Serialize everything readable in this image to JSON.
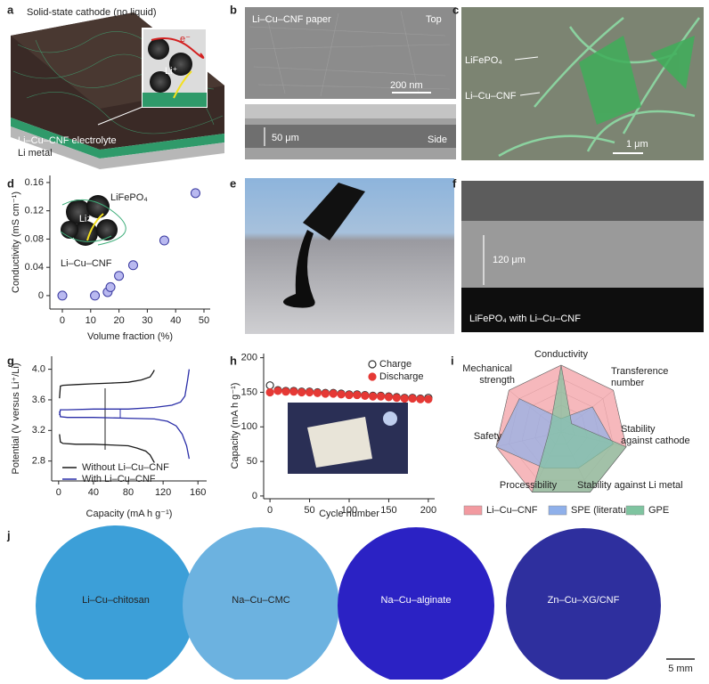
{
  "panels": {
    "a": {
      "label": "a",
      "cathode": "Solid-state cathode (no liquid)",
      "inset_electron": "e⁻",
      "inset_ion": "Li⁺",
      "electrolyte": "Li–Cu–CNF electrolyte",
      "anode": "Li metal"
    },
    "b": {
      "label": "b",
      "sample": "Li–Cu–CNF paper",
      "top": "Top",
      "top_scale": "200 nm",
      "side_scale": "50 μm",
      "side": "Side"
    },
    "c": {
      "label": "c",
      "cathode": "LiFePO₄",
      "binder": "Li–Cu–CNF",
      "scale": "1 μm"
    },
    "e": {
      "label": "e"
    },
    "f": {
      "label": "f",
      "thickness": "120 μm",
      "caption": "LiFePO₄ with Li–Cu–CNF"
    },
    "j": {
      "label": "j",
      "samples": [
        "Li–Cu–chitosan",
        "Na–Cu–CMC",
        "Na–Cu–alginate",
        "Zn–Cu–XG/CNF"
      ],
      "scale": "5 mm"
    }
  },
  "chart_data": [
    {
      "type": "scatter",
      "label": "d",
      "xlabel": "Volume fraction (%)",
      "ylabel": "Conductivity (mS cm⁻¹)",
      "x": [
        0,
        11.5,
        16,
        17,
        20,
        25,
        36,
        47
      ],
      "values": [
        0,
        0,
        0.005,
        0.012,
        0.028,
        0.043,
        0.078,
        0.145
      ],
      "color": "#b9b9f0",
      "edgecolor": "#3a3aa0",
      "xlim": [
        -4.4,
        52.2
      ],
      "ylim": [
        -0.019,
        0.17
      ],
      "xticks": [
        0,
        10,
        20,
        30,
        40,
        50
      ],
      "yticks": [
        0,
        0.04,
        0.08,
        0.12,
        0.16
      ],
      "annotations": [
        "LiFePO₄",
        "Li⁺",
        "Li–Cu–CNF"
      ]
    },
    {
      "type": "line",
      "label": "g",
      "xlabel": "Capacity (mA h g⁻¹)",
      "ylabel": "Potential (V versus Li⁺/Li)",
      "xlim": [
        -8,
        170
      ],
      "ylim": [
        2.54,
        4.17
      ],
      "xticks": [
        0,
        40,
        80,
        120,
        160
      ],
      "yticks": [
        2.8,
        3.2,
        3.6,
        {
          "value": 4,
          "label": "4.0"
        }
      ],
      "legend": "lower left",
      "series": [
        {
          "name": "Without Li–Cu–CNF",
          "color": "#1a1a1a",
          "x": [
            1,
            2,
            5,
            20,
            40,
            60,
            80,
            95,
            105,
            108,
            110,
            null,
            1,
            2,
            5,
            20,
            40,
            60,
            80,
            90,
            100,
            105,
            110
          ],
          "values": [
            3.62,
            3.78,
            3.79,
            3.8,
            3.81,
            3.82,
            3.83,
            3.86,
            3.9,
            3.95,
            3.99,
            null,
            3.15,
            3.05,
            3.03,
            3.02,
            3.02,
            3.01,
            3.0,
            2.97,
            2.93,
            2.88,
            2.78
          ]
        },
        {
          "name": "With Li–Cu–CNF",
          "color": "#2b2fa8",
          "x": [
            1,
            2,
            10,
            40,
            80,
            110,
            130,
            140,
            145,
            148,
            150,
            null,
            1,
            2,
            10,
            40,
            80,
            110,
            125,
            135,
            142,
            147,
            150
          ],
          "values": [
            3.4,
            3.47,
            3.47,
            3.48,
            3.48,
            3.5,
            3.53,
            3.57,
            3.65,
            3.85,
            4.0,
            null,
            3.45,
            3.38,
            3.37,
            3.37,
            3.36,
            3.35,
            3.32,
            3.26,
            3.15,
            3.0,
            2.83
          ]
        }
      ]
    },
    {
      "type": "scatter",
      "label": "h",
      "xlabel": "Cycle number",
      "ylabel": "Capacity (mA h g⁻¹)",
      "xlim": [
        -8,
        208
      ],
      "ylim": [
        -4,
        206
      ],
      "xticks": [
        0,
        50,
        100,
        150,
        200
      ],
      "yticks": [
        0,
        50,
        100,
        150,
        200
      ],
      "legend": "upper right",
      "x": [
        0,
        10,
        20,
        30,
        40,
        50,
        60,
        70,
        80,
        90,
        100,
        110,
        120,
        130,
        140,
        150,
        160,
        170,
        180,
        190,
        200
      ],
      "series": [
        {
          "name": "Charge",
          "color": "#333333",
          "filled": false,
          "values": [
            160,
            153,
            152,
            152,
            151,
            151,
            150,
            149,
            149,
            148,
            147,
            147,
            146,
            145,
            145,
            144,
            143,
            142,
            142,
            141,
            142
          ]
        },
        {
          "name": "Discharge",
          "color": "#e53935",
          "filled": true,
          "values": [
            150,
            152,
            151,
            151,
            150,
            150,
            149,
            148,
            148,
            147,
            146,
            146,
            145,
            144,
            144,
            143,
            142,
            141,
            141,
            140,
            140
          ]
        }
      ]
    },
    {
      "type": "radar",
      "label": "i",
      "legend": "lower center",
      "axes": [
        "Conductivity",
        "Transference number",
        "Stability against cathode",
        "Stability against Li metal",
        "Processibility",
        "Safety",
        "Mechanical strength"
      ],
      "rlim": [
        0,
        5
      ],
      "rticks": [
        1,
        2,
        3,
        4,
        5
      ],
      "series": [
        {
          "name": "Li–Cu–CNF",
          "color": "#f29aa0",
          "values": [
            5,
            5,
            5,
            5,
            5,
            5,
            5
          ]
        },
        {
          "name": "SPE (literature)",
          "color": "#8fb0ea",
          "values": [
            1,
            3,
            4,
            3,
            3,
            5,
            4
          ]
        },
        {
          "name": "GPE",
          "color": "#7fc4a0",
          "values": [
            5,
            1,
            5,
            5,
            5,
            1,
            1
          ]
        }
      ]
    }
  ]
}
